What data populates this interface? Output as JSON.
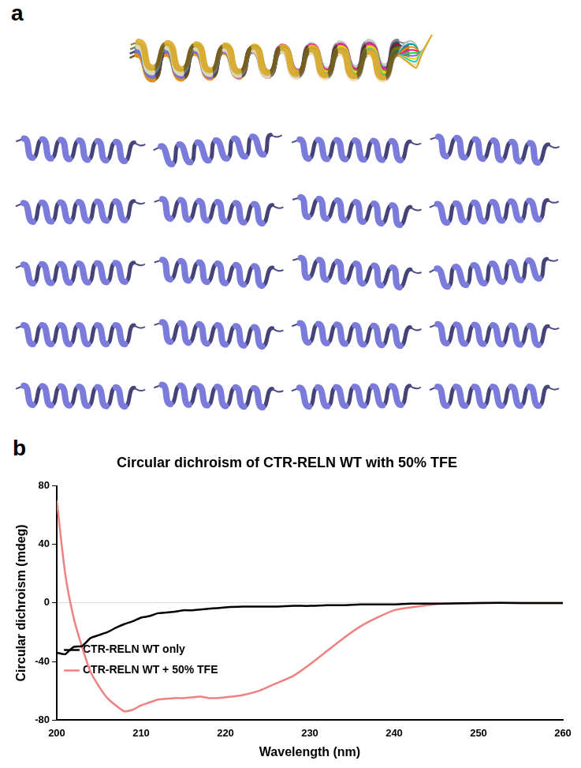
{
  "panel_labels": [
    "a",
    "b"
  ],
  "chart_data": {
    "type": "line",
    "title": "Circular dichroism of CTR-RELN WT with 50% TFE",
    "x_label": "Wavelength (nm)",
    "y_label": "Circular dichroism (mdeg)",
    "x": [
      200,
      201,
      202,
      203,
      204,
      205,
      206,
      207,
      208,
      209,
      210,
      211,
      212,
      213,
      214,
      215,
      216,
      217,
      218,
      219,
      220,
      222,
      224,
      226,
      228,
      230,
      232,
      234,
      236,
      238,
      240,
      242,
      244,
      246,
      250,
      255,
      260
    ],
    "xlim": [
      200,
      260
    ],
    "xticks": [
      200,
      210,
      220,
      230,
      240,
      250,
      260
    ],
    "ylim": [
      -80,
      80
    ],
    "yticks": [
      -80,
      -40,
      0,
      40,
      80
    ],
    "grid": false,
    "legend": "upper right",
    "series": [
      {
        "name": "CTR-RELN WT only",
        "color": "#000000",
        "marker": "none",
        "line_style": "solid",
        "values": [
          -34,
          -35,
          -30,
          -29.5,
          -24,
          -22,
          -20,
          -17,
          -14.5,
          -12.5,
          -10,
          -9,
          -7,
          -6.5,
          -6,
          -5,
          -5,
          -4.5,
          -4,
          -3.5,
          -3,
          -2.5,
          -2.5,
          -2.5,
          -2,
          -2,
          -1.5,
          -1.5,
          -1,
          -1,
          -1,
          -0.5,
          -0.5,
          -0.5,
          0,
          0,
          0
        ]
      },
      {
        "name": "CTR-RELN WT + 50% TFE",
        "color": "#f08080",
        "marker": "none",
        "line_style": "solid",
        "values": [
          70,
          20,
          -10,
          -30,
          -47,
          -57,
          -65,
          -70,
          -74,
          -73,
          -70,
          -68,
          -66,
          -65.5,
          -65,
          -65,
          -64.5,
          -64,
          -65,
          -65,
          -64.5,
          -63,
          -60,
          -55,
          -50,
          -42,
          -33,
          -24,
          -16,
          -10,
          -5,
          -3,
          -1.5,
          -0.5,
          0,
          0,
          0
        ]
      }
    ]
  }
}
